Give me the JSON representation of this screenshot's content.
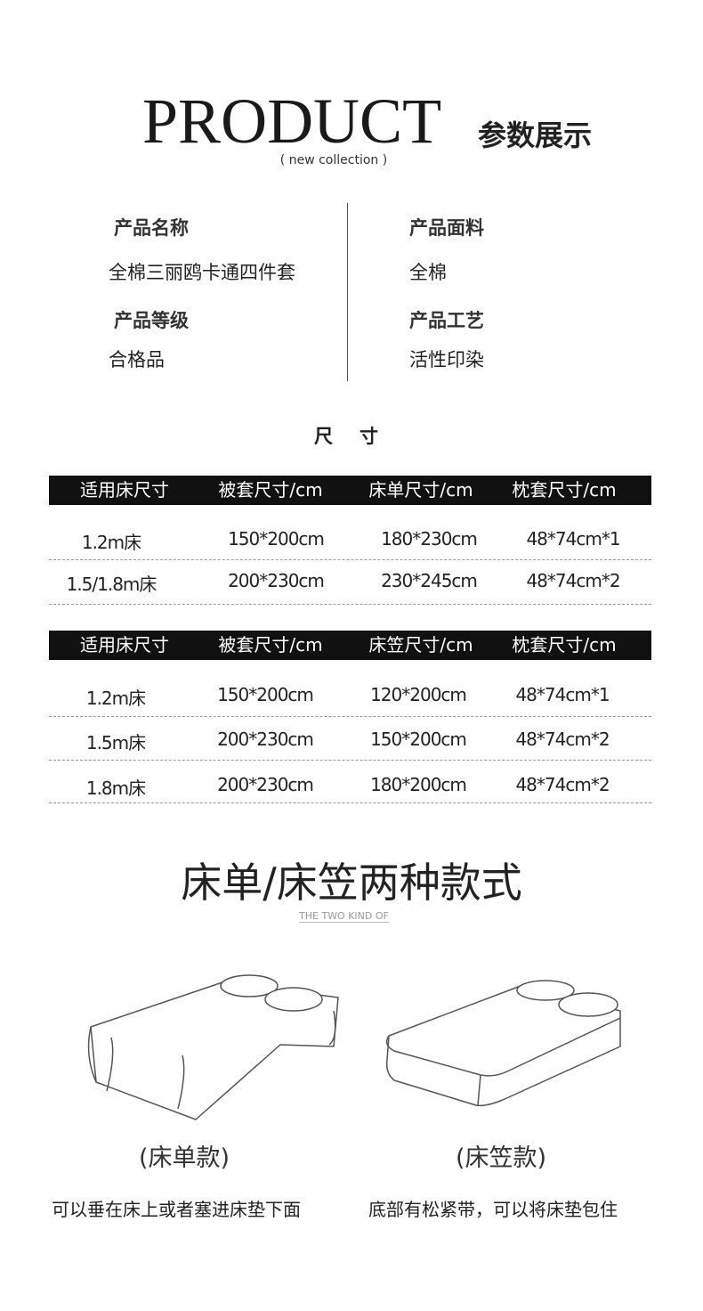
{
  "header": {
    "title_en": "PRODUCT",
    "title_cn": "参数展示",
    "subtitle": "(  new collection  )"
  },
  "info": [
    {
      "label": "产品名称",
      "value": "全棉三丽鸥卡通四件套"
    },
    {
      "label": "产品面料",
      "value": "全棉"
    },
    {
      "label": "产品等级",
      "value": "合格品"
    },
    {
      "label": "产品工艺",
      "value": "活性印染"
    }
  ],
  "size_heading": "尺寸",
  "table1": {
    "headers": [
      "适用床尺寸",
      "被套尺寸/cm",
      "床单尺寸/cm",
      "枕套尺寸/cm"
    ],
    "rows": [
      [
        "1.2m床",
        "150*200cm",
        "180*230cm",
        "48*74cm*1"
      ],
      [
        "1.5/1.8m床",
        "200*230cm",
        "230*245cm",
        "48*74cm*2"
      ]
    ]
  },
  "table2": {
    "headers": [
      "适用床尺寸",
      "被套尺寸/cm",
      "床笠尺寸/cm",
      "枕套尺寸/cm"
    ],
    "rows": [
      [
        "1.2m床",
        "150*200cm",
        "120*200cm",
        "48*74cm*1"
      ],
      [
        "1.5m床",
        "200*230cm",
        "150*200cm",
        "48*74cm*2"
      ],
      [
        "1.8m床",
        "200*230cm",
        "180*200cm",
        "48*74cm*2"
      ]
    ]
  },
  "styles": {
    "title": "床单/床笠两种款式",
    "subtitle": "THE TWO KIND OF",
    "items": [
      {
        "caption": "(床单款)",
        "desc": "可以垂在床上或者塞进床垫下面"
      },
      {
        "caption": "(床笠款)",
        "desc": "底部有松紧带，可以将床垫包住"
      }
    ]
  }
}
